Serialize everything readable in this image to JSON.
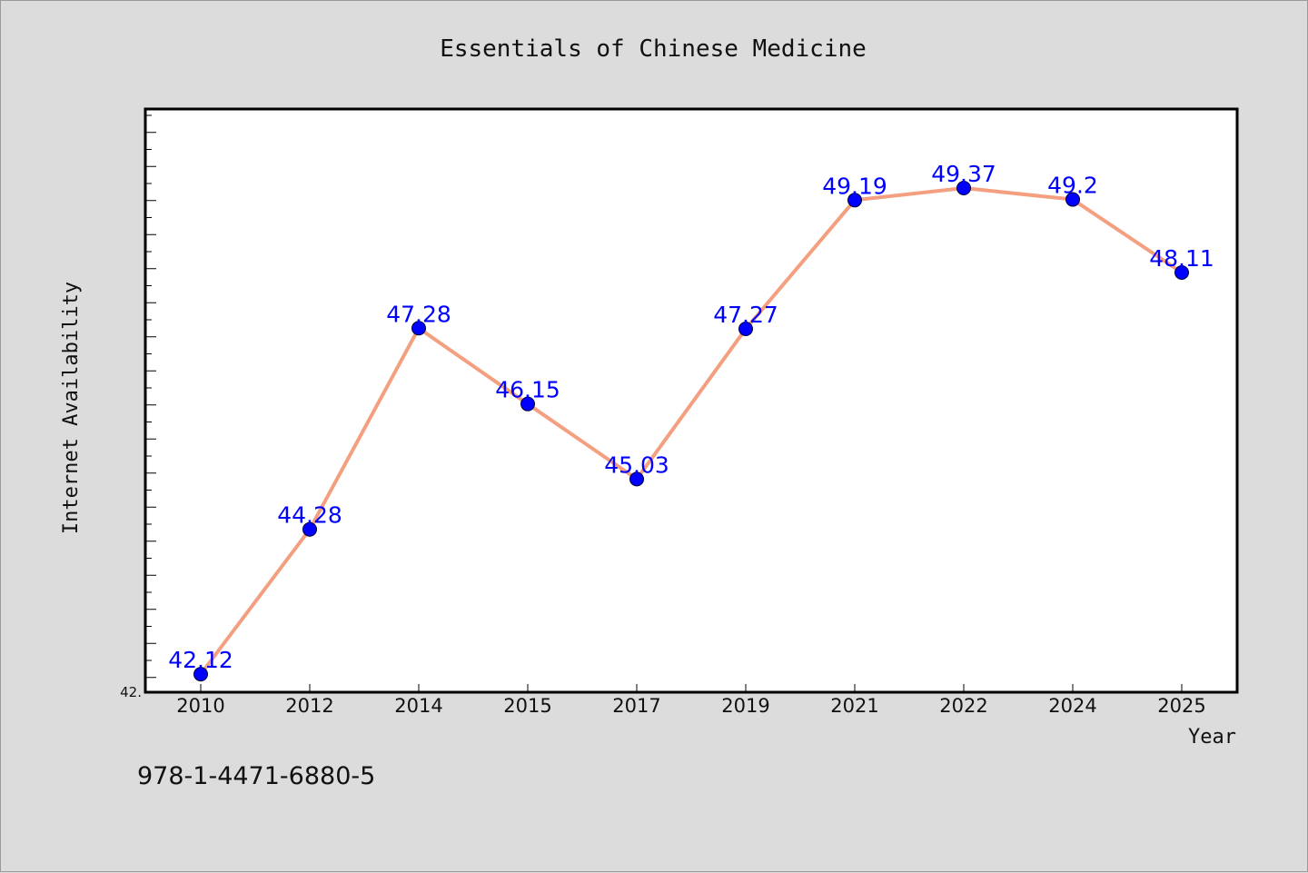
{
  "chart_data": {
    "type": "line",
    "title": "Essentials of Chinese Medicine",
    "xlabel": "Year",
    "ylabel": "Internet Availability",
    "categories": [
      "2010",
      "2012",
      "2014",
      "2015",
      "2017",
      "2019",
      "2021",
      "2022",
      "2024",
      "2025"
    ],
    "series": [
      {
        "values": [
          42.12,
          44.28,
          47.28,
          46.15,
          45.03,
          47.27,
          49.19,
          49.37,
          49.2,
          48.11
        ],
        "labels": [
          "42.12",
          "44.28",
          "47.28",
          "46.15",
          "45.03",
          "47.27",
          "49.19",
          "49.37",
          "49.2",
          "48.11"
        ],
        "line_color": "#f4a080",
        "marker_color": "#0000ff"
      }
    ],
    "ylim": [
      42.0,
      50.5
    ],
    "ytick_label": "42.",
    "grid": false,
    "legend": "none"
  },
  "footnote": "978-1-4471-6880-5"
}
